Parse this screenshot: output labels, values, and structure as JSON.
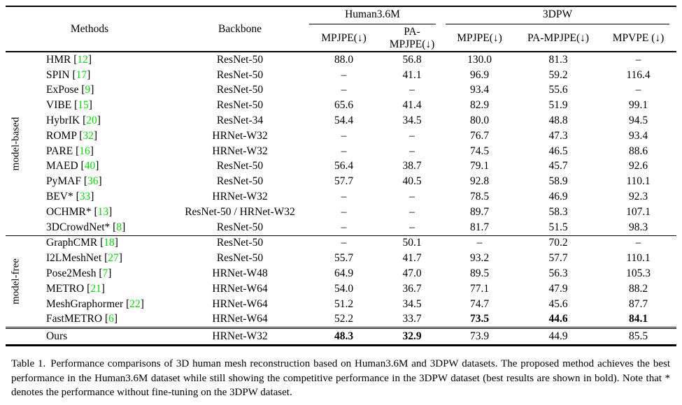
{
  "colors": {
    "citation_green": "#00DC00",
    "text": "#000000",
    "background": "#ffffff"
  },
  "table": {
    "header": {
      "methods": "Methods",
      "backbone": "Backbone",
      "group1": "Human3.6M",
      "group2": "3DPW",
      "sub": [
        "MPJPE(↓)",
        "PA-MPJPE(↓)",
        "MPJPE(↓)",
        "PA-MPJPE(↓)",
        "MPVPE (↓)"
      ]
    },
    "sections": [
      {
        "label": "model-based",
        "rows": [
          {
            "method": "HMR",
            "cite": "12",
            "backbone": "ResNet-50",
            "values": [
              "88.0",
              "56.8",
              "130.0",
              "81.3",
              "–"
            ],
            "bold": []
          },
          {
            "method": "SPIN",
            "cite": "17",
            "backbone": "ResNet-50",
            "values": [
              "–",
              "41.1",
              "96.9",
              "59.2",
              "116.4"
            ],
            "bold": []
          },
          {
            "method": "ExPose",
            "cite": "9",
            "backbone": "ResNet-50",
            "values": [
              "–",
              "–",
              "93.4",
              "55.6",
              "–"
            ],
            "bold": []
          },
          {
            "method": "VIBE",
            "cite": "15",
            "backbone": "ResNet-50",
            "values": [
              "65.6",
              "41.4",
              "82.9",
              "51.9",
              "99.1"
            ],
            "bold": []
          },
          {
            "method": "HybrIK",
            "cite": "20",
            "backbone": "ResNet-34",
            "values": [
              "54.4",
              "34.5",
              "80.0",
              "48.8",
              "94.5"
            ],
            "bold": []
          },
          {
            "method": "ROMP",
            "cite": "32",
            "backbone": "HRNet-W32",
            "values": [
              "–",
              "–",
              "76.7",
              "47.3",
              "93.4"
            ],
            "bold": []
          },
          {
            "method": "PARE",
            "cite": "16",
            "backbone": "HRNet-W32",
            "values": [
              "–",
              "–",
              "74.5",
              "46.5",
              "88.6"
            ],
            "bold": []
          },
          {
            "method": "MAED",
            "cite": "40",
            "backbone": "ResNet-50",
            "values": [
              "56.4",
              "38.7",
              "79.1",
              "45.7",
              "92.6"
            ],
            "bold": []
          },
          {
            "method": "PyMAF",
            "cite": "36",
            "backbone": "ResNet-50",
            "values": [
              "57.7",
              "40.5",
              "92.8",
              "58.9",
              "110.1"
            ],
            "bold": []
          },
          {
            "method": "BEV*",
            "cite": "33",
            "backbone": "HRNet-W32",
            "values": [
              "–",
              "–",
              "78.5",
              "46.9",
              "92.3"
            ],
            "bold": []
          },
          {
            "method": "OCHMR*",
            "cite": "13",
            "backbone": "ResNet-50 / HRNet-W32",
            "values": [
              "–",
              "–",
              "89.7",
              "58.3",
              "107.1"
            ],
            "bold": []
          },
          {
            "method": "3DCrowdNet*",
            "cite": "8",
            "backbone": "ResNet-50",
            "values": [
              "–",
              "–",
              "81.7",
              "51.5",
              "98.3"
            ],
            "bold": []
          }
        ]
      },
      {
        "label": "model-free",
        "rows": [
          {
            "method": "GraphCMR",
            "cite": "18",
            "backbone": "ResNet-50",
            "values": [
              "–",
              "50.1",
              "–",
              "70.2",
              "–"
            ],
            "bold": []
          },
          {
            "method": "I2LMeshNet",
            "cite": "27",
            "backbone": "ResNet-50",
            "values": [
              "55.7",
              "41.7",
              "93.2",
              "57.7",
              "110.1"
            ],
            "bold": []
          },
          {
            "method": "Pose2Mesh",
            "cite": "7",
            "backbone": "HRNet-W48",
            "values": [
              "64.9",
              "47.0",
              "89.5",
              "56.3",
              "105.3"
            ],
            "bold": []
          },
          {
            "method": "METRO",
            "cite": "21",
            "backbone": "HRNet-W64",
            "values": [
              "54.0",
              "36.7",
              "77.1",
              "47.9",
              "88.2"
            ],
            "bold": []
          },
          {
            "method": "MeshGraphormer",
            "cite": "22",
            "backbone": "HRNet-W64",
            "values": [
              "51.2",
              "34.5",
              "74.7",
              "45.6",
              "87.7"
            ],
            "bold": []
          },
          {
            "method": "FastMETRO",
            "cite": "6",
            "backbone": "HRNet-W64",
            "values": [
              "52.2",
              "33.7",
              "73.5",
              "44.6",
              "84.1"
            ],
            "bold": [
              2,
              3,
              4
            ]
          }
        ]
      },
      {
        "label": "",
        "rows": [
          {
            "method": "Ours",
            "cite": null,
            "backbone": "HRNet-W32",
            "values": [
              "48.3",
              "32.9",
              "73.9",
              "44.9",
              "85.5"
            ],
            "bold": [
              0,
              1
            ]
          }
        ]
      }
    ]
  },
  "caption": {
    "label": "Table 1.",
    "text": "Performance comparisons of 3D human mesh reconstruction based on Human3.6M and 3DPW datasets. The proposed method achieves the best performance in the Human3.6M dataset while still showing the competitive performance in the 3DPW dataset (best results are shown in bold). Note that * denotes the performance without fine-tuning on the 3DPW dataset."
  }
}
